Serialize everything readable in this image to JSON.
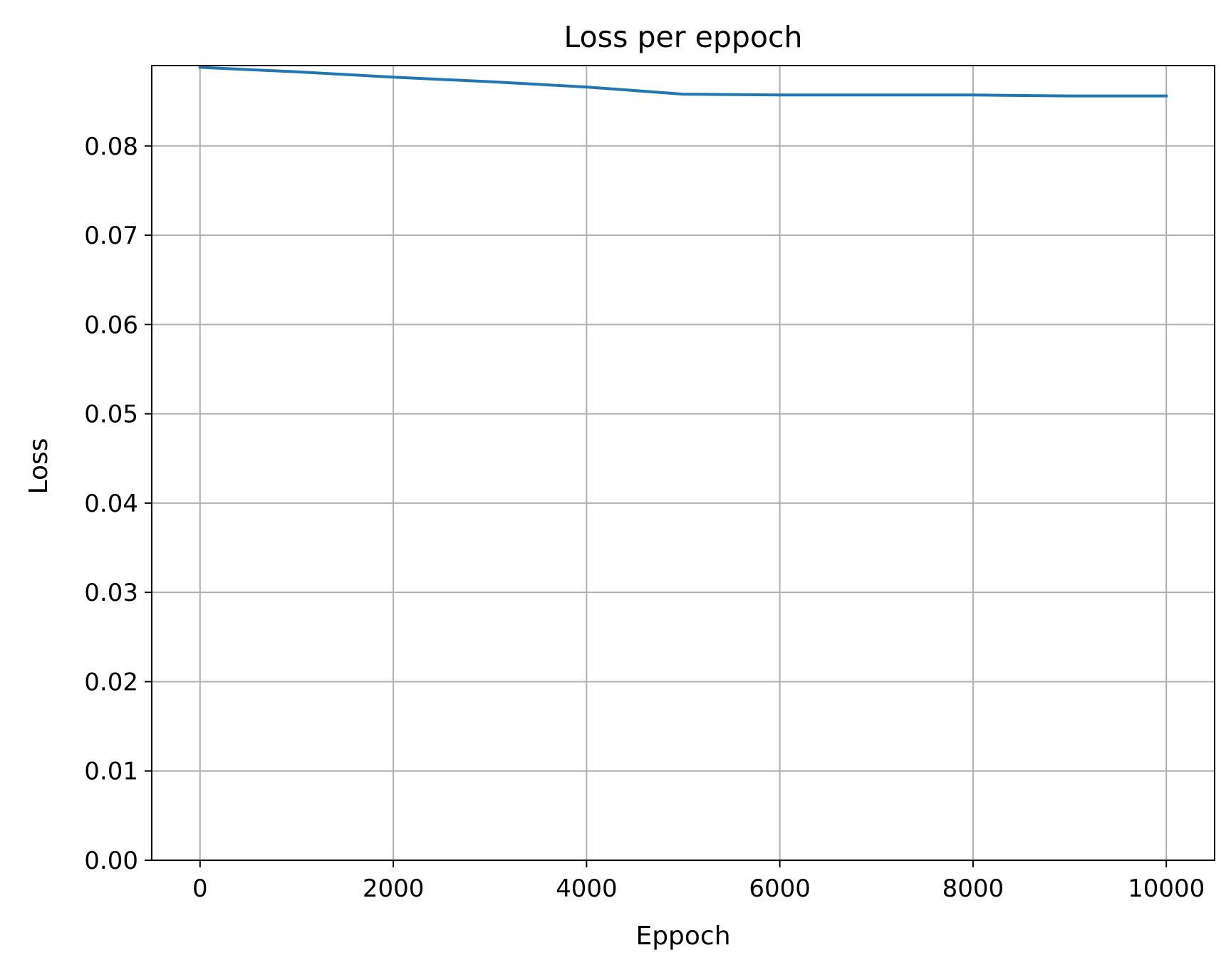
{
  "chart_data": {
    "type": "line",
    "title": "Loss per eppoch",
    "xlabel": "Eppoch",
    "ylabel": "Loss",
    "xlim": [
      -500,
      10500
    ],
    "ylim": [
      0,
      0.089
    ],
    "xticks": [
      0,
      2000,
      4000,
      6000,
      8000,
      10000
    ],
    "xtick_labels": [
      "0",
      "2000",
      "4000",
      "6000",
      "8000",
      "10000"
    ],
    "yticks": [
      0,
      0.01,
      0.02,
      0.03,
      0.04,
      0.05,
      0.06,
      0.07,
      0.08
    ],
    "ytick_labels": [
      "0.00",
      "0.01",
      "0.02",
      "0.03",
      "0.04",
      "0.05",
      "0.06",
      "0.07",
      "0.08"
    ],
    "grid": true,
    "series": [
      {
        "color": "#1f77b4",
        "x": [
          0,
          1000,
          2000,
          3000,
          4000,
          5000,
          6000,
          7000,
          8000,
          9000,
          10000
        ],
        "y": [
          0.0888,
          0.0883,
          0.0877,
          0.0872,
          0.0866,
          0.0858,
          0.0857,
          0.0857,
          0.0857,
          0.0856,
          0.0856
        ]
      }
    ]
  }
}
